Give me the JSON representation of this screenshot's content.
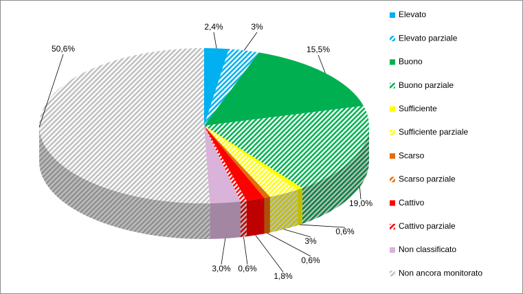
{
  "chart_data": {
    "type": "pie3d",
    "categories": [
      "Elevato",
      "Elevato parziale",
      "Buono",
      "Buono parziale",
      "Sufficiente",
      "Sufficiente parziale",
      "Scarso",
      "Scarso parziale",
      "Cattivo",
      "Cattivo parziale",
      "Non classificato",
      "Non ancora monitorato"
    ],
    "values": [
      2.4,
      3,
      15.5,
      19.0,
      0.6,
      3,
      0.6,
      0,
      1.8,
      0.6,
      3.0,
      50.6
    ],
    "value_labels": [
      "2,4%",
      "3%",
      "15,5%",
      "19,0%",
      "0,6%",
      "3%",
      "0,6%",
      null,
      "1,8%",
      "0,6%",
      "3,0%",
      "50,6%"
    ],
    "colors": [
      "#00b0f0",
      "#00b0f0",
      "#00b050",
      "#00b050",
      "#ffff00",
      "#ffff00",
      "#e46c0a",
      "#e46c0a",
      "#ff0000",
      "#ff0000",
      "#d9b3d9",
      "#bfbfbf"
    ],
    "patterns": [
      "solid",
      "hatch",
      "solid",
      "hatch",
      "solid",
      "hatch",
      "solid",
      "hatch",
      "solid",
      "hatch",
      "solid",
      "hatch"
    ],
    "legend": "right"
  }
}
